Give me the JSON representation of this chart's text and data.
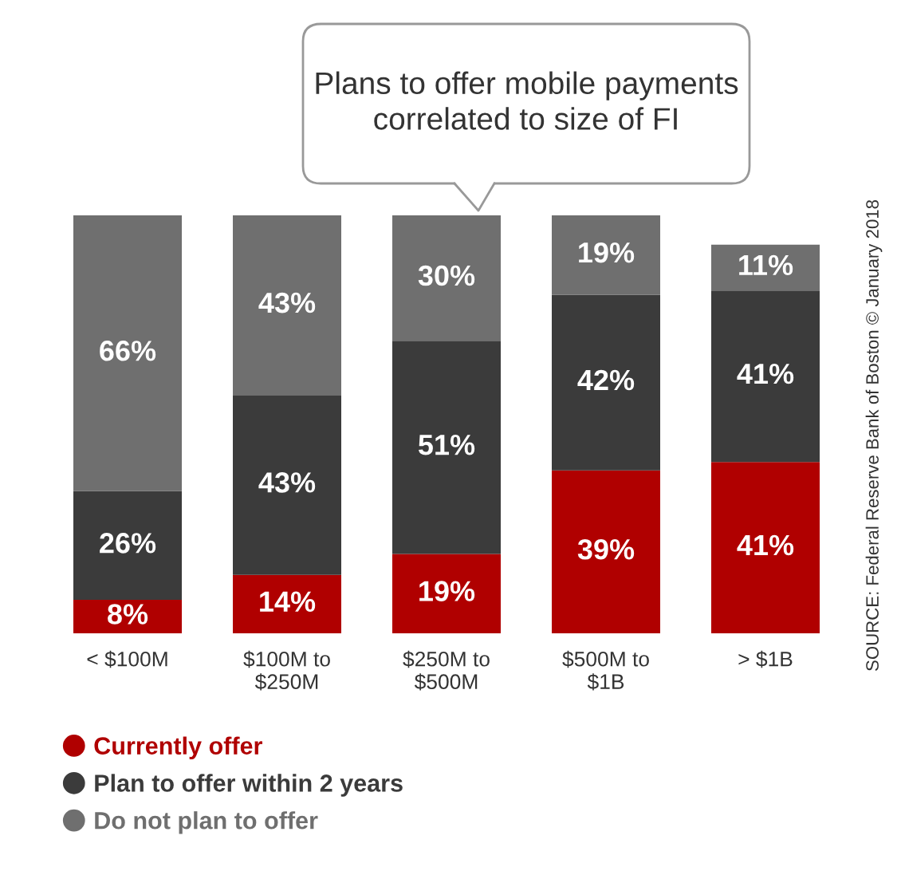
{
  "chart_data": {
    "type": "bar",
    "stacked": true,
    "legend": "bottom left",
    "title": "Plans to offer mobile payments\ncorrelated to size of FI",
    "categories": [
      "< $100M",
      "$100M to\n$250M",
      "$250M to\n$500M",
      "$500M to\n$1B",
      "> $1B"
    ],
    "series": [
      {
        "name": "Currently offer",
        "color": "#b00000",
        "values": [
          8,
          14,
          19,
          39,
          41
        ],
        "value_labels": [
          "8%",
          "14%",
          "19%",
          "39%",
          "41%"
        ]
      },
      {
        "name": "Plan to offer within 2 years",
        "color": "#3b3b3b",
        "values": [
          26,
          43,
          51,
          42,
          41
        ],
        "value_labels": [
          "26%",
          "43%",
          "51%",
          "42%",
          "41%"
        ]
      },
      {
        "name": "Do not plan to offer",
        "color": "#6f6f6f",
        "values": [
          66,
          43,
          30,
          19,
          11
        ],
        "value_labels": [
          "66%",
          "43%",
          "30%",
          "19%",
          "11%"
        ]
      }
    ],
    "annotations": [
      "SOURCE: Federal Reserve Bank of Boston © January 2018"
    ]
  }
}
